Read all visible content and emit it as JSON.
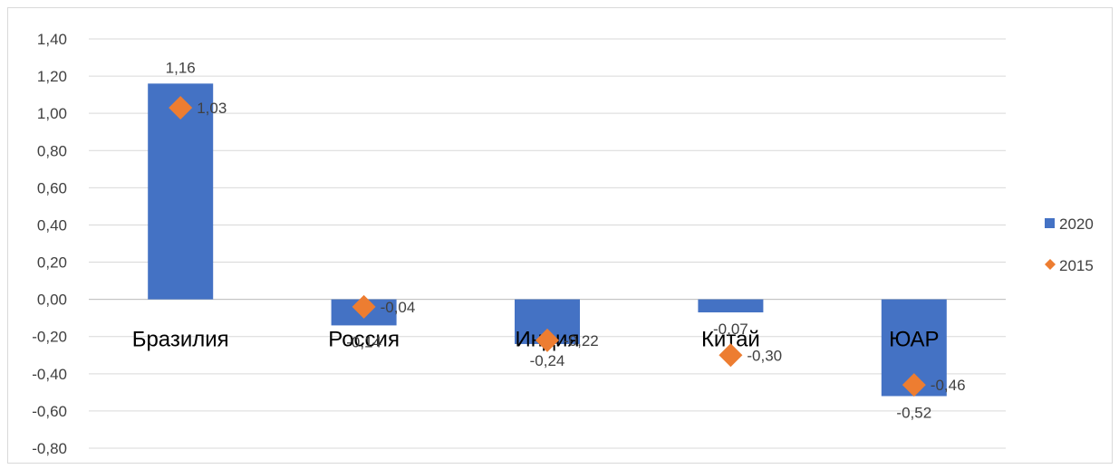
{
  "chart_data": {
    "type": "bar",
    "title": "",
    "xlabel": "",
    "ylabel": "",
    "ylim": [
      -0.8,
      1.4
    ],
    "ytick_step": 0.2,
    "yticks": [
      "-0,80",
      "-0,60",
      "-0,40",
      "-0,20",
      "0,00",
      "0,20",
      "0,40",
      "0,60",
      "0,80",
      "1,00",
      "1,20",
      "1,40"
    ],
    "grid": true,
    "legend_position": "right",
    "categories": [
      "Бразилия",
      "Россия",
      "Индия",
      "Китай",
      "ЮАР"
    ],
    "series": [
      {
        "name": "2020",
        "kind": "bar",
        "color": "#4472c4",
        "values": [
          1.16,
          -0.14,
          -0.24,
          -0.07,
          -0.52
        ],
        "labels": [
          "1,16",
          "-0,14",
          "-0,24",
          "-0,07",
          "-0,52"
        ]
      },
      {
        "name": "2015",
        "kind": "marker",
        "marker": "diamond",
        "color": "#ed7d31",
        "values": [
          1.03,
          -0.04,
          -0.22,
          -0.3,
          -0.46
        ],
        "labels": [
          "1,03",
          "-0,04",
          "-0,22",
          "-0,30",
          "-0,46"
        ]
      }
    ]
  }
}
